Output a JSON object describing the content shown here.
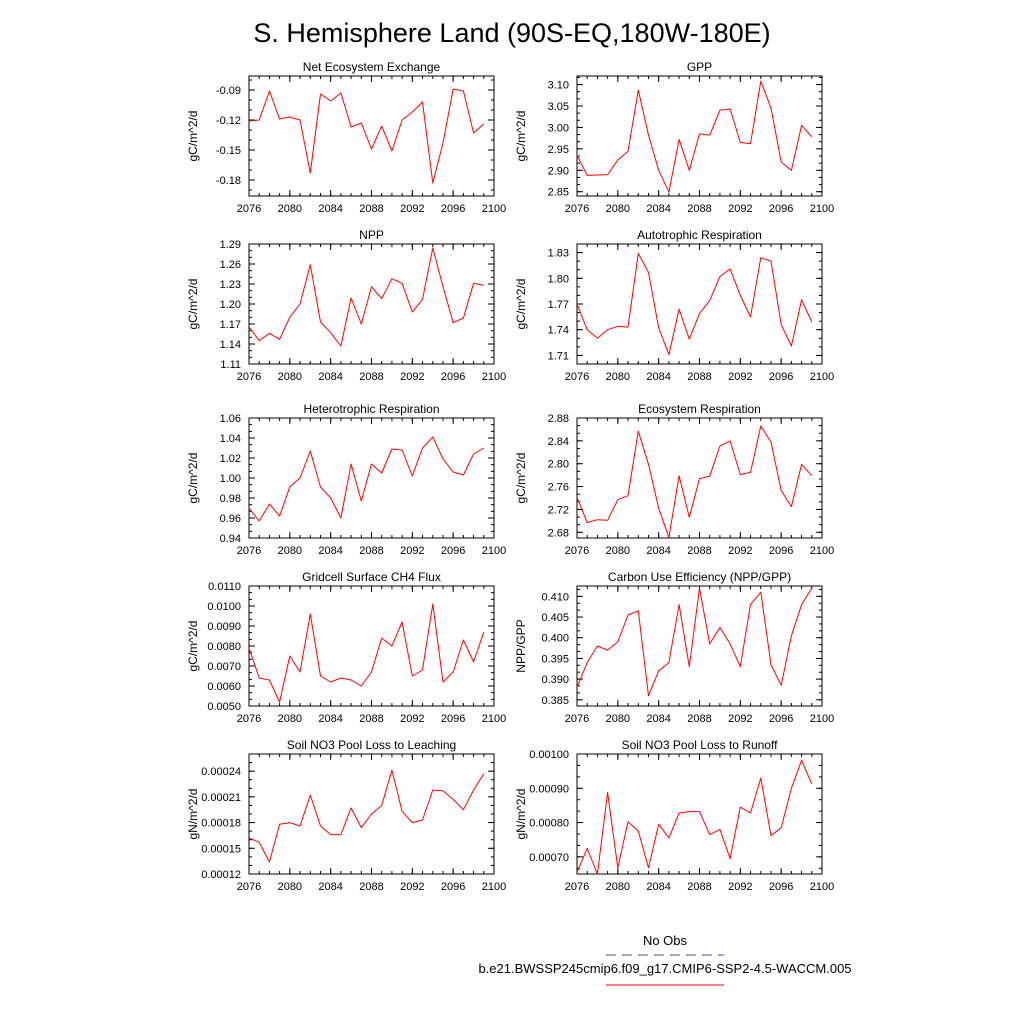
{
  "page": {
    "title": "S. Hemisphere Land (90S-EQ,180W-180E)"
  },
  "legend": {
    "obs_label": "No Obs",
    "obs_color": "#4444cc",
    "model_label": "b.e21.BWSSP245cmip6.f09_g17.CMIP6-SSP2-4.5-WACCM.005",
    "model_color": "#ff0000"
  },
  "chart_data": [
    {
      "type": "line",
      "title": "Net Ecosystem Exchange",
      "ylabel": "gC/m^2/d",
      "xlabel": "",
      "xlim": [
        2076,
        2100
      ],
      "xticks": [
        2076,
        2080,
        2084,
        2088,
        2092,
        2096,
        2100
      ],
      "ylim": [
        -0.196,
        -0.076
      ],
      "yticks": [
        -0.18,
        -0.15,
        -0.12,
        -0.09
      ],
      "ytick_labels": [
        "-0.18",
        "-0.15",
        "-0.12",
        "-0.09"
      ],
      "x": [
        2076,
        2077,
        2078,
        2079,
        2080,
        2081,
        2082,
        2083,
        2084,
        2085,
        2086,
        2087,
        2088,
        2089,
        2090,
        2091,
        2092,
        2093,
        2094,
        2095,
        2096,
        2097,
        2098,
        2099
      ],
      "series": [
        {
          "name": "b.e21.BWSSP245cmip6.f09_g17.CMIP6-SSP2-4.5-WACCM.005",
          "color": "#ff0000",
          "values": [
            -0.121,
            -0.12,
            -0.091,
            -0.119,
            -0.117,
            -0.12,
            -0.173,
            -0.094,
            -0.101,
            -0.093,
            -0.127,
            -0.123,
            -0.149,
            -0.126,
            -0.151,
            -0.12,
            -0.112,
            -0.102,
            -0.183,
            -0.143,
            -0.089,
            -0.091,
            -0.133,
            -0.124
          ]
        }
      ]
    },
    {
      "type": "line",
      "title": "GPP",
      "ylabel": "gC/m^2/d",
      "xlabel": "",
      "xlim": [
        2076,
        2100
      ],
      "xticks": [
        2076,
        2080,
        2084,
        2088,
        2092,
        2096,
        2100
      ],
      "ylim": [
        2.84,
        3.12
      ],
      "yticks": [
        2.85,
        2.9,
        2.95,
        3.0,
        3.05,
        3.1
      ],
      "ytick_labels": [
        "2.85",
        "2.90",
        "2.95",
        "3.00",
        "3.05",
        "3.10"
      ],
      "x": [
        2076,
        2077,
        2078,
        2079,
        2080,
        2081,
        2082,
        2083,
        2084,
        2085,
        2086,
        2087,
        2088,
        2089,
        2090,
        2091,
        2092,
        2093,
        2094,
        2095,
        2096,
        2097,
        2098,
        2099
      ],
      "series": [
        {
          "name": "b.e21.BWSSP245cmip6.f09_g17.CMIP6-SSP2-4.5-WACCM.005",
          "color": "#ff0000",
          "values": [
            2.935,
            2.888,
            2.889,
            2.89,
            2.924,
            2.944,
            3.087,
            2.982,
            2.9,
            2.849,
            2.972,
            2.9,
            2.985,
            2.982,
            3.04,
            3.043,
            2.965,
            2.962,
            3.108,
            3.045,
            2.919,
            2.9,
            3.005,
            2.978
          ]
        }
      ]
    },
    {
      "type": "line",
      "title": "NPP",
      "ylabel": "gC/m^2/d",
      "xlabel": "",
      "xlim": [
        2076,
        2100
      ],
      "xticks": [
        2076,
        2080,
        2084,
        2088,
        2092,
        2096,
        2100
      ],
      "ylim": [
        1.11,
        1.29
      ],
      "yticks": [
        1.11,
        1.14,
        1.17,
        1.2,
        1.23,
        1.26,
        1.29
      ],
      "ytick_labels": [
        "1.11",
        "1.14",
        "1.17",
        "1.20",
        "1.23",
        "1.26",
        "1.29"
      ],
      "x": [
        2076,
        2077,
        2078,
        2079,
        2080,
        2081,
        2082,
        2083,
        2084,
        2085,
        2086,
        2087,
        2088,
        2089,
        2090,
        2091,
        2092,
        2093,
        2094,
        2095,
        2096,
        2097,
        2098,
        2099
      ],
      "series": [
        {
          "name": "b.e21.BWSSP245cmip6.f09_g17.CMIP6-SSP2-4.5-WACCM.005",
          "color": "#ff0000",
          "values": [
            1.166,
            1.145,
            1.156,
            1.147,
            1.18,
            1.2,
            1.259,
            1.173,
            1.157,
            1.137,
            1.209,
            1.17,
            1.226,
            1.208,
            1.238,
            1.231,
            1.188,
            1.207,
            1.284,
            1.226,
            1.172,
            1.179,
            1.231,
            1.228
          ]
        }
      ]
    },
    {
      "type": "line",
      "title": "Autotrophic Respiration",
      "ylabel": "gC/m^2/d",
      "xlabel": "",
      "xlim": [
        2076,
        2100
      ],
      "xticks": [
        2076,
        2080,
        2084,
        2088,
        2092,
        2096,
        2100
      ],
      "ylim": [
        1.7,
        1.84
      ],
      "yticks": [
        1.71,
        1.74,
        1.77,
        1.8,
        1.83
      ],
      "ytick_labels": [
        "1.71",
        "1.74",
        "1.77",
        "1.80",
        "1.83"
      ],
      "x": [
        2076,
        2077,
        2078,
        2079,
        2080,
        2081,
        2082,
        2083,
        2084,
        2085,
        2086,
        2087,
        2088,
        2089,
        2090,
        2091,
        2092,
        2093,
        2094,
        2095,
        2096,
        2097,
        2098,
        2099
      ],
      "series": [
        {
          "name": "b.e21.BWSSP245cmip6.f09_g17.CMIP6-SSP2-4.5-WACCM.005",
          "color": "#ff0000",
          "values": [
            1.77,
            1.74,
            1.73,
            1.74,
            1.744,
            1.743,
            1.829,
            1.807,
            1.742,
            1.711,
            1.764,
            1.729,
            1.759,
            1.774,
            1.802,
            1.811,
            1.78,
            1.755,
            1.824,
            1.82,
            1.746,
            1.721,
            1.775,
            1.749
          ]
        }
      ]
    },
    {
      "type": "line",
      "title": "Heterotrophic Respiration",
      "ylabel": "gC/m^2/d",
      "xlabel": "",
      "xlim": [
        2076,
        2100
      ],
      "xticks": [
        2076,
        2080,
        2084,
        2088,
        2092,
        2096,
        2100
      ],
      "ylim": [
        0.94,
        1.06
      ],
      "yticks": [
        0.94,
        0.96,
        0.98,
        1.0,
        1.02,
        1.04,
        1.06
      ],
      "ytick_labels": [
        "0.94",
        "0.96",
        "0.98",
        "1.00",
        "1.02",
        "1.04",
        "1.06"
      ],
      "x": [
        2076,
        2077,
        2078,
        2079,
        2080,
        2081,
        2082,
        2083,
        2084,
        2085,
        2086,
        2087,
        2088,
        2089,
        2090,
        2091,
        2092,
        2093,
        2094,
        2095,
        2096,
        2097,
        2098,
        2099
      ],
      "series": [
        {
          "name": "b.e21.BWSSP245cmip6.f09_g17.CMIP6-SSP2-4.5-WACCM.005",
          "color": "#ff0000",
          "values": [
            0.97,
            0.957,
            0.974,
            0.962,
            0.991,
            1.0,
            1.027,
            0.991,
            0.98,
            0.96,
            1.014,
            0.977,
            1.014,
            1.005,
            1.029,
            1.028,
            1.002,
            1.03,
            1.041,
            1.019,
            1.006,
            1.003,
            1.024,
            1.03
          ]
        }
      ]
    },
    {
      "type": "line",
      "title": "Ecosystem Respiration",
      "ylabel": "gC/m^2/d",
      "xlabel": "",
      "xlim": [
        2076,
        2100
      ],
      "xticks": [
        2076,
        2080,
        2084,
        2088,
        2092,
        2096,
        2100
      ],
      "ylim": [
        2.67,
        2.88
      ],
      "yticks": [
        2.68,
        2.72,
        2.76,
        2.8,
        2.84,
        2.88
      ],
      "ytick_labels": [
        "2.68",
        "2.72",
        "2.76",
        "2.80",
        "2.84",
        "2.88"
      ],
      "x": [
        2076,
        2077,
        2078,
        2079,
        2080,
        2081,
        2082,
        2083,
        2084,
        2085,
        2086,
        2087,
        2088,
        2089,
        2090,
        2091,
        2092,
        2093,
        2094,
        2095,
        2096,
        2097,
        2098,
        2099
      ],
      "series": [
        {
          "name": "b.e21.BWSSP245cmip6.f09_g17.CMIP6-SSP2-4.5-WACCM.005",
          "color": "#ff0000",
          "values": [
            2.741,
            2.697,
            2.702,
            2.701,
            2.737,
            2.744,
            2.857,
            2.799,
            2.722,
            2.671,
            2.779,
            2.706,
            2.774,
            2.778,
            2.831,
            2.84,
            2.781,
            2.785,
            2.866,
            2.838,
            2.753,
            2.725,
            2.799,
            2.779
          ]
        }
      ]
    },
    {
      "type": "line",
      "title": "Gridcell Surface CH4 Flux",
      "ylabel": "gC/m^2/d",
      "xlabel": "",
      "xlim": [
        2076,
        2100
      ],
      "xticks": [
        2076,
        2080,
        2084,
        2088,
        2092,
        2096,
        2100
      ],
      "ylim": [
        0.005,
        0.011
      ],
      "yticks": [
        0.005,
        0.006,
        0.007,
        0.008,
        0.009,
        0.01,
        0.011
      ],
      "ytick_labels": [
        "0.0050",
        "0.0060",
        "0.0070",
        "0.0080",
        "0.0090",
        "0.0100",
        "0.0110"
      ],
      "x": [
        2076,
        2077,
        2078,
        2079,
        2080,
        2081,
        2082,
        2083,
        2084,
        2085,
        2086,
        2087,
        2088,
        2089,
        2090,
        2091,
        2092,
        2093,
        2094,
        2095,
        2096,
        2097,
        2098,
        2099
      ],
      "series": [
        {
          "name": "b.e21.BWSSP245cmip6.f09_g17.CMIP6-SSP2-4.5-WACCM.005",
          "color": "#ff0000",
          "values": [
            0.0079,
            0.0064,
            0.0063,
            0.0052,
            0.0075,
            0.0067,
            0.0096,
            0.0065,
            0.0062,
            0.0064,
            0.0063,
            0.006,
            0.0067,
            0.0084,
            0.008,
            0.0092,
            0.0065,
            0.0068,
            0.0101,
            0.0062,
            0.0067,
            0.0083,
            0.0072,
            0.0087
          ]
        }
      ]
    },
    {
      "type": "line",
      "title": "Carbon Use Efficiency (NPP/GPP)",
      "ylabel": "NPP/GPP",
      "xlabel": "",
      "xlim": [
        2076,
        2100
      ],
      "xticks": [
        2076,
        2080,
        2084,
        2088,
        2092,
        2096,
        2100
      ],
      "ylim": [
        0.3835,
        0.4125
      ],
      "yticks": [
        0.385,
        0.39,
        0.395,
        0.4,
        0.405,
        0.41
      ],
      "ytick_labels": [
        "0.385",
        "0.390",
        "0.395",
        "0.400",
        "0.405",
        "0.410"
      ],
      "x": [
        2076,
        2077,
        2078,
        2079,
        2080,
        2081,
        2082,
        2083,
        2084,
        2085,
        2086,
        2087,
        2088,
        2089,
        2090,
        2091,
        2092,
        2093,
        2094,
        2095,
        2096,
        2097,
        2098,
        2099
      ],
      "series": [
        {
          "name": "b.e21.BWSSP245cmip6.f09_g17.CMIP6-SSP2-4.5-WACCM.005",
          "color": "#ff0000",
          "values": [
            0.388,
            0.394,
            0.398,
            0.397,
            0.399,
            0.4055,
            0.4065,
            0.386,
            0.392,
            0.394,
            0.408,
            0.393,
            0.412,
            0.3985,
            0.4025,
            0.3985,
            0.393,
            0.408,
            0.411,
            0.3935,
            0.3885,
            0.4005,
            0.408,
            0.412
          ]
        }
      ]
    },
    {
      "type": "line",
      "title": "Soil NO3 Pool Loss to Leaching",
      "ylabel": "gN/m^2/d",
      "xlabel": "",
      "xlim": [
        2076,
        2100
      ],
      "xticks": [
        2076,
        2080,
        2084,
        2088,
        2092,
        2096,
        2100
      ],
      "ylim": [
        0.00012,
        0.00026
      ],
      "yticks": [
        0.00012,
        0.00015,
        0.00018,
        0.00021,
        0.00024
      ],
      "ytick_labels": [
        "0.00012",
        "0.00015",
        "0.00018",
        "0.00021",
        "0.00024"
      ],
      "x": [
        2076,
        2077,
        2078,
        2079,
        2080,
        2081,
        2082,
        2083,
        2084,
        2085,
        2086,
        2087,
        2088,
        2089,
        2090,
        2091,
        2092,
        2093,
        2094,
        2095,
        2096,
        2097,
        2098,
        2099
      ],
      "series": [
        {
          "name": "b.e21.BWSSP245cmip6.f09_g17.CMIP6-SSP2-4.5-WACCM.005",
          "color": "#ff0000",
          "values": [
            0.000162,
            0.000157,
            0.000134,
            0.000178,
            0.00018,
            0.000176,
            0.000212,
            0.000176,
            0.000166,
            0.000166,
            0.000197,
            0.000174,
            0.00019,
            0.0002,
            0.000241,
            0.000193,
            0.00018,
            0.000183,
            0.000218,
            0.000217,
            0.000207,
            0.000195,
            0.000218,
            0.000237
          ]
        }
      ]
    },
    {
      "type": "line",
      "title": "Soil NO3 Pool Loss to Runoff",
      "ylabel": "gN/m^2/d",
      "xlabel": "",
      "xlim": [
        2076,
        2100
      ],
      "xticks": [
        2076,
        2080,
        2084,
        2088,
        2092,
        2096,
        2100
      ],
      "ylim": [
        0.00065,
        0.001
      ],
      "yticks": [
        0.0007,
        0.0008,
        0.0009,
        0.001
      ],
      "ytick_labels": [
        "0.00070",
        "0.00080",
        "0.00090",
        "0.00100"
      ],
      "x": [
        2076,
        2077,
        2078,
        2079,
        2080,
        2081,
        2082,
        2083,
        2084,
        2085,
        2086,
        2087,
        2088,
        2089,
        2090,
        2091,
        2092,
        2093,
        2094,
        2095,
        2096,
        2097,
        2098,
        2099
      ],
      "series": [
        {
          "name": "b.e21.BWSSP245cmip6.f09_g17.CMIP6-SSP2-4.5-WACCM.005",
          "color": "#ff0000",
          "values": [
            0.000655,
            0.000725,
            0.00065,
            0.000888,
            0.000668,
            0.000802,
            0.000775,
            0.000668,
            0.000795,
            0.000755,
            0.000828,
            0.000832,
            0.000832,
            0.000765,
            0.00078,
            0.000695,
            0.000845,
            0.000828,
            0.00093,
            0.000762,
            0.000785,
            0.0009,
            0.000982,
            0.000912
          ]
        }
      ]
    }
  ]
}
